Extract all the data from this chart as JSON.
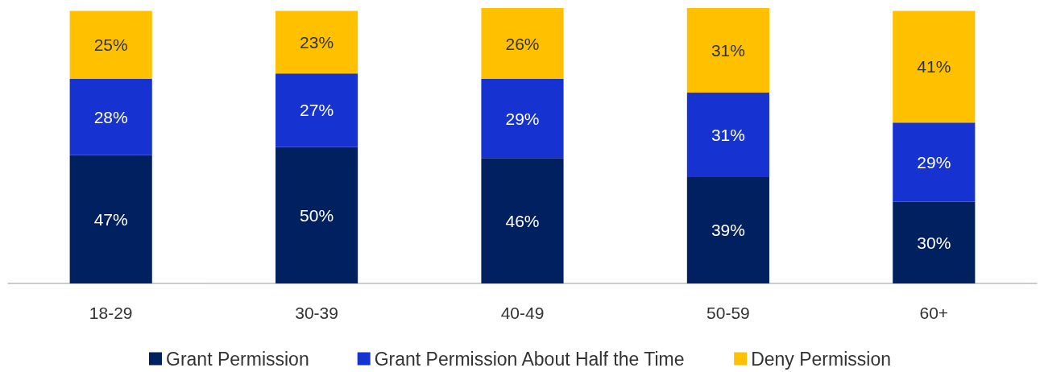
{
  "chart_data": {
    "type": "bar",
    "stacked": true,
    "categories": [
      "18-29",
      "30-39",
      "40-49",
      "50-59",
      "60+"
    ],
    "series": [
      {
        "name": "Grant Permission",
        "color": "#002060",
        "values": [
          47,
          50,
          46,
          39,
          30
        ],
        "value_labels": [
          "47%",
          "50%",
          "46%",
          "39%",
          "30%"
        ]
      },
      {
        "name": "Grant Permission About Half the Time",
        "color": "#1632d0",
        "values": [
          28,
          27,
          29,
          31,
          29
        ],
        "value_labels": [
          "28%",
          "27%",
          "29%",
          "31%",
          "29%"
        ]
      },
      {
        "name": "Deny Permission",
        "color": "#ffc000",
        "values": [
          25,
          23,
          26,
          31,
          41
        ],
        "value_labels": [
          "25%",
          "23%",
          "26%",
          "31%",
          "41%"
        ]
      }
    ],
    "legend": "bottom"
  }
}
